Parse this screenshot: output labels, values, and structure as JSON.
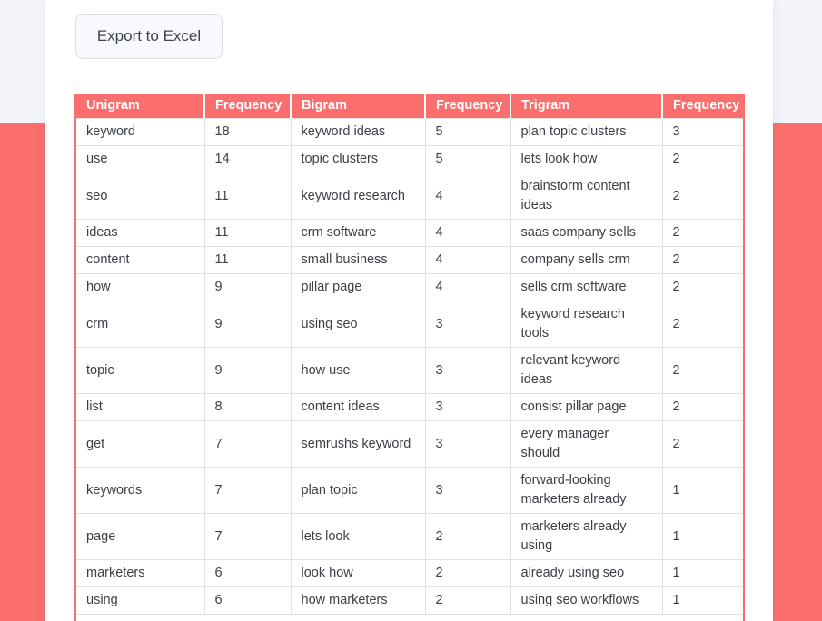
{
  "theme": {
    "accent": "#fb6e6e",
    "top_band": "#f3f5fb",
    "card": "#ffffff",
    "border": "#e0e0e0",
    "text": "#3c4045",
    "header_text": "#ffffff",
    "button_bg": "#f7f9fc",
    "button_border": "#d9dde4",
    "button_text": "#3f4450"
  },
  "toolbar": {
    "export_button_label": "Export to Excel"
  },
  "table": {
    "headers": [
      "Unigram",
      "Frequency",
      "Bigram",
      "Frequency",
      "Trigram",
      "Frequency"
    ],
    "rows": [
      {
        "unigram": "keyword",
        "uni_freq": 18,
        "bigram": "keyword ideas",
        "bi_freq": 5,
        "trigram": "plan topic clusters",
        "tri_freq": 3
      },
      {
        "unigram": "use",
        "uni_freq": 14,
        "bigram": "topic clusters",
        "bi_freq": 5,
        "trigram": "lets look how",
        "tri_freq": 2
      },
      {
        "unigram": "seo",
        "uni_freq": 11,
        "bigram": "keyword research",
        "bi_freq": 4,
        "trigram": "brainstorm content\nideas",
        "tri_freq": 2
      },
      {
        "unigram": "ideas",
        "uni_freq": 11,
        "bigram": "crm software",
        "bi_freq": 4,
        "trigram": "saas company sells",
        "tri_freq": 2
      },
      {
        "unigram": "content",
        "uni_freq": 11,
        "bigram": "small business",
        "bi_freq": 4,
        "trigram": "company sells crm",
        "tri_freq": 2
      },
      {
        "unigram": "how",
        "uni_freq": 9,
        "bigram": "pillar page",
        "bi_freq": 4,
        "trigram": "sells crm software",
        "tri_freq": 2
      },
      {
        "unigram": "crm",
        "uni_freq": 9,
        "bigram": "using seo",
        "bi_freq": 3,
        "trigram": "keyword research\ntools",
        "tri_freq": 2
      },
      {
        "unigram": "topic",
        "uni_freq": 9,
        "bigram": "how use",
        "bi_freq": 3,
        "trigram": "relevant keyword\nideas",
        "tri_freq": 2
      },
      {
        "unigram": "list",
        "uni_freq": 8,
        "bigram": "content ideas",
        "bi_freq": 3,
        "trigram": "consist pillar page",
        "tri_freq": 2
      },
      {
        "unigram": "get",
        "uni_freq": 7,
        "bigram": "semrushs keyword",
        "bi_freq": 3,
        "trigram": "every manager\nshould",
        "tri_freq": 2
      },
      {
        "unigram": "keywords",
        "uni_freq": 7,
        "bigram": "plan topic",
        "bi_freq": 3,
        "trigram": "forward-looking\nmarketers already",
        "tri_freq": 1
      },
      {
        "unigram": "page",
        "uni_freq": 7,
        "bigram": "lets look",
        "bi_freq": 2,
        "trigram": "marketers already\nusing",
        "tri_freq": 1
      },
      {
        "unigram": "marketers",
        "uni_freq": 6,
        "bigram": "look how",
        "bi_freq": 2,
        "trigram": "already using seo",
        "tri_freq": 1
      },
      {
        "unigram": "using",
        "uni_freq": 6,
        "bigram": "how marketers",
        "bi_freq": 2,
        "trigram": "using seo workflows",
        "tri_freq": 1
      }
    ]
  }
}
